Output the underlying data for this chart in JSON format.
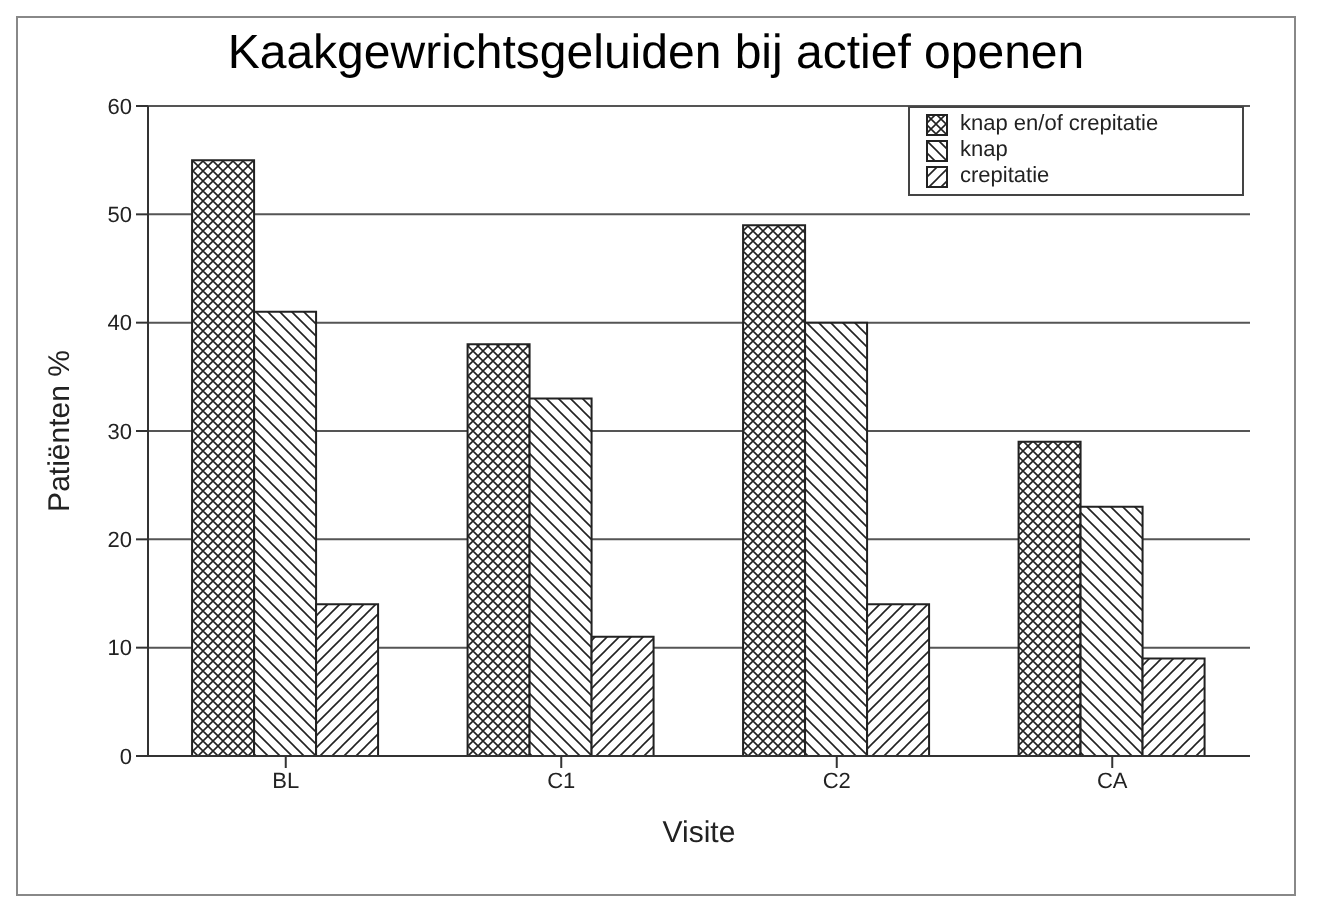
{
  "chart_data": {
    "type": "bar",
    "title": "Kaakgewrichtsgeluiden bij actief openen",
    "xlabel": "Visite",
    "ylabel": "Patiënten %",
    "categories": [
      "BL",
      "C1",
      "C2",
      "CA"
    ],
    "series": [
      {
        "name": "knap en/of crepitatie",
        "color": "#222222",
        "values": [
          55,
          38,
          49,
          29
        ]
      },
      {
        "name": "knap",
        "color": "#222222",
        "values": [
          41,
          33,
          40,
          23
        ]
      },
      {
        "name": "crepitatie",
        "color": "#222222",
        "values": [
          14,
          11,
          14,
          9
        ]
      }
    ],
    "ylim": [
      0,
      60
    ],
    "yticks": [
      0,
      10,
      20,
      30,
      40,
      50,
      60
    ],
    "grid": "y",
    "legend": "top right"
  }
}
